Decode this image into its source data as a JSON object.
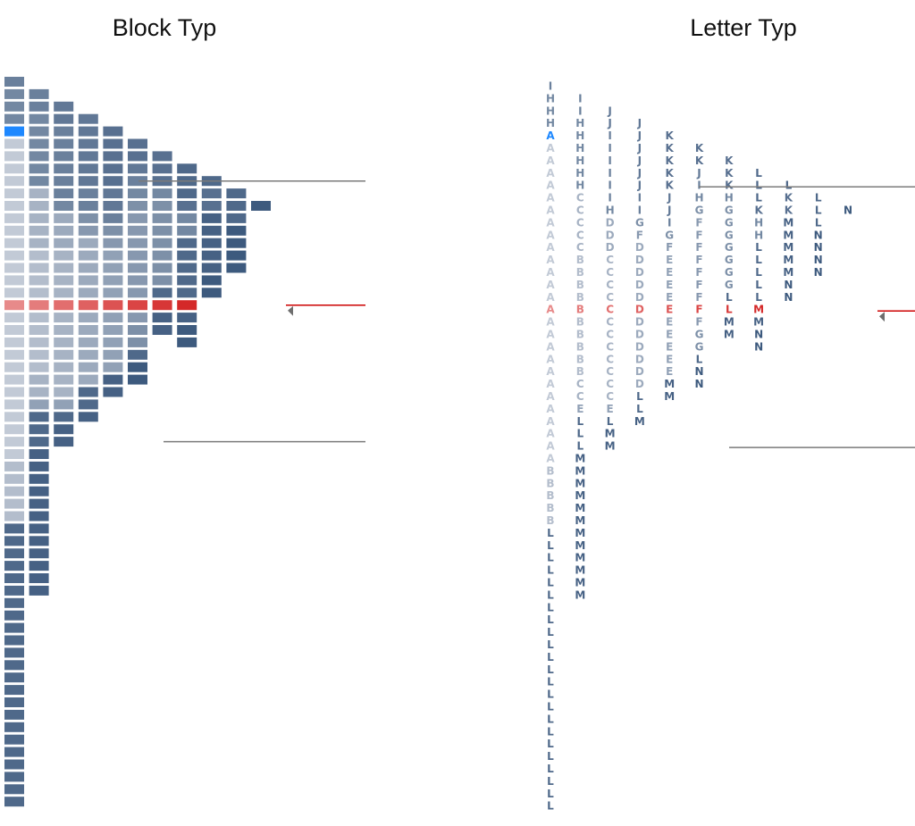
{
  "chart_data": [
    {
      "type": "bar",
      "title": "Block Typ",
      "periods": [
        "A",
        "B",
        "C",
        "D",
        "E",
        "F",
        "G",
        "H",
        "I",
        "J",
        "K",
        "L",
        "M",
        "N"
      ],
      "columns": [
        "IHHHAAAAAAAAAAAAAAAAAAAAAAAAAAABBBBBLLLLLLLLLLLLLLLLLLLLLLL",
        "IIHHHHHHCCCCCBBBBBBBBBBCCELLLMMMMMMMMMMMM",
        "JJIIIIIIHDDDCCCCCCCCCCCCELMM",
        "JJJJJJIIGFDDDDDDDDDDDDLLM",
        "KKKKKJJIGFEEEEEEEEEEMM",
        "KKJIHGFFFFFFFFFGGLNN",
        "KKKHGGGGGGGLLMM",
        "LLLKHHLLLLLMMNN",
        "LKKMMMMMNN",
        "LLLNNNN",
        "N"
      ],
      "open_period": "A",
      "open_index": 4,
      "poc_row": 18,
      "value_area_high_row": 8,
      "value_area_low_row": 29,
      "colors": {
        "open": "#1e88ff",
        "poc": "#cc0000",
        "early": "#c2cad6",
        "late": "#3d5a7e",
        "lines": "#7a7a7a"
      }
    },
    {
      "type": "table",
      "title": "Letter Typ",
      "periods": [
        "A",
        "B",
        "C",
        "D",
        "E",
        "F",
        "G",
        "H",
        "I",
        "J",
        "K",
        "L",
        "M",
        "N"
      ],
      "columns": [
        "IHHHAAAAAAAAAAAAAAAAAAAAAAAAAAABBBBBLLLLLLLLLLLLLLLLLLLLLLL",
        "IIHHHHHHCCCCCBBBBBBBBBBCCELLLMMMMMMMMMMMM",
        "JJIIIIIIHDDDCCCCCCCCCCCCELMM",
        "JJJJJJIIGFDDDDDDDDDDDDLLM",
        "KKKKKJJIGFEEEEEEEEEEMM",
        "KKJIHGFFFFFFFFFGGLNN",
        "KKKHGGGGGGGLLMM",
        "LLLKHHLLLLLMMNN",
        "LKKMMMMMNN",
        "LLLNNNN",
        "N"
      ],
      "open_period": "A",
      "poc_row": 18,
      "value_area_high_row": 8,
      "value_area_low_row": 29,
      "colors": {
        "open": "#1e88ff",
        "poc": "#cc0000",
        "early": "#c2cad6",
        "late": "#3d5a7e",
        "lines": "#7a7a7a"
      }
    }
  ]
}
